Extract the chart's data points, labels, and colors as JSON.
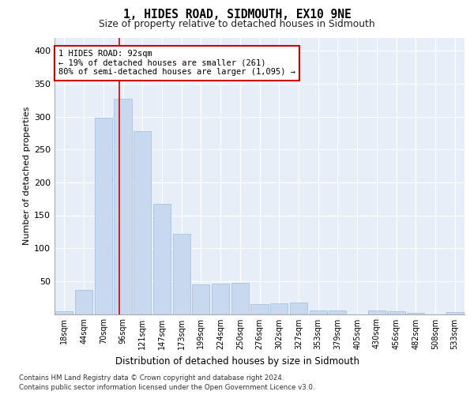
{
  "title": "1, HIDES ROAD, SIDMOUTH, EX10 9NE",
  "subtitle": "Size of property relative to detached houses in Sidmouth",
  "xlabel": "Distribution of detached houses by size in Sidmouth",
  "ylabel": "Number of detached properties",
  "bar_color": "#c8d8ee",
  "bar_edge_color": "#8ab4d8",
  "bin_labels": [
    "18sqm",
    "44sqm",
    "70sqm",
    "96sqm",
    "121sqm",
    "147sqm",
    "173sqm",
    "199sqm",
    "224sqm",
    "250sqm",
    "276sqm",
    "302sqm",
    "327sqm",
    "353sqm",
    "379sqm",
    "405sqm",
    "430sqm",
    "456sqm",
    "482sqm",
    "508sqm",
    "533sqm"
  ],
  "bar_heights": [
    4,
    37,
    298,
    327,
    278,
    168,
    122,
    45,
    46,
    47,
    15,
    16,
    17,
    5,
    6,
    0,
    6,
    4,
    2,
    0,
    3
  ],
  "vline_x_index": 2.82,
  "vline_color": "#cc0000",
  "annotation_text": "1 HIDES ROAD: 92sqm\n← 19% of detached houses are smaller (261)\n80% of semi-detached houses are larger (1,095) →",
  "annotation_box_color": "#ffffff",
  "annotation_box_edge": "#cc0000",
  "ylim": [
    0,
    420
  ],
  "yticks": [
    0,
    50,
    100,
    150,
    200,
    250,
    300,
    350,
    400
  ],
  "background_color": "#e8eef8",
  "footer_line1": "Contains HM Land Registry data © Crown copyright and database right 2024.",
  "footer_line2": "Contains public sector information licensed under the Open Government Licence v3.0."
}
